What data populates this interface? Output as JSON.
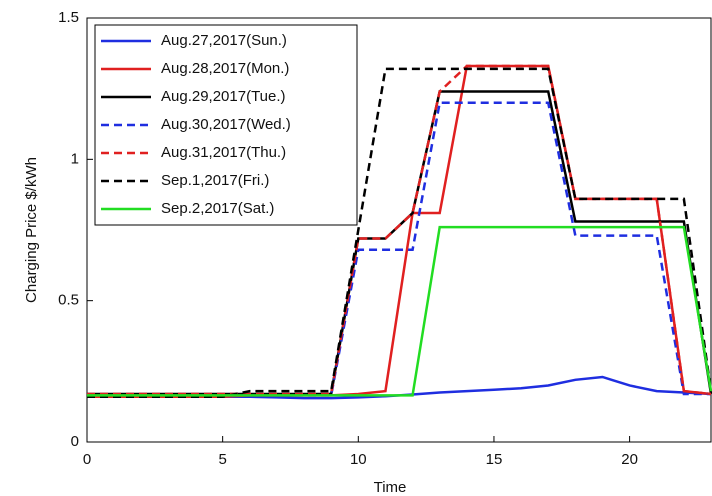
{
  "chart_data": {
    "type": "line",
    "xlabel": "Time",
    "ylabel": "Charging Price $/kWh",
    "x": [
      0,
      1,
      2,
      3,
      4,
      5,
      6,
      7,
      8,
      9,
      10,
      11,
      12,
      13,
      14,
      15,
      16,
      17,
      18,
      19,
      20,
      21,
      22,
      23
    ],
    "xlim": [
      0,
      23
    ],
    "xticks": [
      0,
      5,
      10,
      15,
      20
    ],
    "ylim": [
      0,
      1.5
    ],
    "yticks": [
      0,
      0.5,
      1,
      1.5
    ],
    "legend": "upper left",
    "series": [
      {
        "name": "Aug.27,2017(Sun.)",
        "color": "#1f2ee0",
        "style": "solid",
        "values": [
          0.16,
          0.16,
          0.16,
          0.16,
          0.16,
          0.16,
          0.16,
          0.158,
          0.155,
          0.155,
          0.158,
          0.162,
          0.168,
          0.175,
          0.18,
          0.185,
          0.19,
          0.2,
          0.22,
          0.23,
          0.2,
          0.18,
          0.175,
          0.17
        ]
      },
      {
        "name": "Aug.28,2017(Mon.)",
        "color": "#e02020",
        "style": "solid",
        "values": [
          0.16,
          0.16,
          0.16,
          0.16,
          0.16,
          0.16,
          0.165,
          0.165,
          0.165,
          0.165,
          0.17,
          0.18,
          0.81,
          0.81,
          1.33,
          1.33,
          1.33,
          1.33,
          0.86,
          0.86,
          0.86,
          0.86,
          0.18,
          0.17
        ]
      },
      {
        "name": "Aug.29,2017(Tue.)",
        "color": "#000000",
        "style": "solid",
        "values": [
          0.17,
          0.17,
          0.17,
          0.17,
          0.17,
          0.17,
          0.17,
          0.17,
          0.17,
          0.17,
          0.72,
          0.72,
          0.81,
          1.24,
          1.24,
          1.24,
          1.24,
          1.24,
          0.78,
          0.78,
          0.78,
          0.78,
          0.78,
          0.17
        ]
      },
      {
        "name": "Aug.30,2017(Wed.)",
        "color": "#1f2ee0",
        "style": "dashed",
        "values": [
          0.165,
          0.165,
          0.165,
          0.165,
          0.165,
          0.165,
          0.165,
          0.165,
          0.165,
          0.165,
          0.68,
          0.68,
          0.68,
          1.2,
          1.2,
          1.2,
          1.2,
          1.2,
          0.73,
          0.73,
          0.73,
          0.73,
          0.17,
          0.17
        ]
      },
      {
        "name": "Aug.31,2017(Thu.)",
        "color": "#e02020",
        "style": "dashed",
        "values": [
          0.17,
          0.17,
          0.17,
          0.17,
          0.17,
          0.17,
          0.17,
          0.17,
          0.17,
          0.17,
          0.72,
          0.72,
          0.81,
          1.24,
          1.33,
          1.33,
          1.33,
          1.33,
          0.86,
          0.86,
          0.86,
          0.86,
          0.18,
          0.17
        ]
      },
      {
        "name": "Sep.1,2017(Fri.)",
        "color": "#000000",
        "style": "dashed",
        "values": [
          0.16,
          0.16,
          0.16,
          0.16,
          0.16,
          0.16,
          0.18,
          0.18,
          0.18,
          0.18,
          0.75,
          1.32,
          1.32,
          1.32,
          1.32,
          1.32,
          1.32,
          1.32,
          0.86,
          0.86,
          0.86,
          0.86,
          0.86,
          0.18
        ]
      },
      {
        "name": "Sep.2,2017(Sat.)",
        "color": "#22dd22",
        "style": "solid",
        "values": [
          0.165,
          0.165,
          0.165,
          0.165,
          0.165,
          0.165,
          0.165,
          0.165,
          0.165,
          0.165,
          0.165,
          0.165,
          0.165,
          0.76,
          0.76,
          0.76,
          0.76,
          0.76,
          0.76,
          0.76,
          0.76,
          0.76,
          0.76,
          0.18
        ]
      }
    ]
  }
}
